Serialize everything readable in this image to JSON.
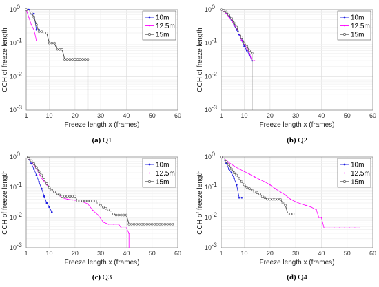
{
  "chart_data": [
    {
      "type": "line",
      "caption_letter": "(a)",
      "caption_text": "Q1",
      "xlabel": "Freeze length x (frames)",
      "ylabel": "CCH of freeze length",
      "yscale": "log",
      "xlim": [
        1,
        60
      ],
      "ylim": [
        0.001,
        1
      ],
      "xticks": [
        "1",
        "10",
        "20",
        "30",
        "40",
        "50",
        "60"
      ],
      "yticks": [
        "10^0",
        "10^-1",
        "10^-2",
        "10^-3"
      ],
      "legend_position": "top-right",
      "grid": true,
      "series": [
        {
          "name": "10m",
          "color": "#1a1ae0",
          "points": [
            [
              1,
              1
            ],
            [
              2,
              1
            ],
            [
              3,
              0.75
            ],
            [
              4,
              0.75
            ],
            [
              5,
              0.25
            ],
            [
              6,
              0.25
            ]
          ]
        },
        {
          "name": "12.5m",
          "color": "#ff00ff",
          "points": [
            [
              1,
              1
            ],
            [
              2,
              0.6
            ],
            [
              3,
              0.35
            ],
            [
              4,
              0.25
            ],
            [
              5,
              0.12
            ]
          ]
        },
        {
          "name": "15m",
          "color": "#555555",
          "points": [
            [
              1,
              1
            ],
            [
              2,
              0.9
            ],
            [
              3,
              0.8
            ],
            [
              4,
              0.6
            ],
            [
              5,
              0.35
            ],
            [
              6,
              0.22
            ],
            [
              7,
              0.22
            ],
            [
              8,
              0.2
            ],
            [
              9,
              0.2
            ],
            [
              10,
              0.1
            ],
            [
              11,
              0.1
            ],
            [
              12,
              0.1
            ],
            [
              13,
              0.065
            ],
            [
              14,
              0.065
            ],
            [
              15,
              0.065
            ],
            [
              16,
              0.033
            ],
            [
              17,
              0.033
            ],
            [
              18,
              0.033
            ],
            [
              19,
              0.033
            ],
            [
              20,
              0.033
            ],
            [
              21,
              0.033
            ],
            [
              22,
              0.033
            ],
            [
              23,
              0.033
            ],
            [
              24,
              0.033
            ],
            [
              25,
              0.033
            ],
            [
              25,
              0.001
            ]
          ]
        }
      ]
    },
    {
      "type": "line",
      "caption_letter": "(b)",
      "caption_text": "Q2",
      "xlabel": "Freeze length x (frames)",
      "ylabel": "CCH of freeze length",
      "yscale": "log",
      "xlim": [
        1,
        60
      ],
      "ylim": [
        0.001,
        1
      ],
      "xticks": [
        "1",
        "10",
        "20",
        "30",
        "40",
        "50",
        "60"
      ],
      "yticks": [
        "10^0",
        "10^-1",
        "10^-2",
        "10^-3"
      ],
      "legend_position": "top-right",
      "grid": true,
      "series": [
        {
          "name": "10m",
          "color": "#1a1ae0",
          "points": [
            [
              1,
              1
            ],
            [
              2,
              0.95
            ],
            [
              3,
              0.8
            ],
            [
              4,
              0.65
            ],
            [
              5,
              0.5
            ],
            [
              6,
              0.35
            ],
            [
              7,
              0.25
            ],
            [
              8,
              0.18
            ],
            [
              9,
              0.12
            ],
            [
              10,
              0.08
            ],
            [
              11,
              0.06
            ],
            [
              12,
              0.045
            ],
            [
              13,
              0.03
            ]
          ]
        },
        {
          "name": "12.5m",
          "color": "#ff00ff",
          "points": [
            [
              1,
              1
            ],
            [
              2,
              0.9
            ],
            [
              3,
              0.75
            ],
            [
              4,
              0.6
            ],
            [
              5,
              0.5
            ],
            [
              6,
              0.35
            ],
            [
              7,
              0.28
            ],
            [
              8,
              0.2
            ],
            [
              9,
              0.12
            ],
            [
              10,
              0.09
            ],
            [
              11,
              0.07
            ],
            [
              12,
              0.05
            ],
            [
              13,
              0.03
            ],
            [
              14,
              0.03
            ]
          ]
        },
        {
          "name": "15m",
          "color": "#555555",
          "points": [
            [
              1,
              1
            ],
            [
              2,
              0.95
            ],
            [
              3,
              0.85
            ],
            [
              4,
              0.7
            ],
            [
              5,
              0.55
            ],
            [
              6,
              0.4
            ],
            [
              7,
              0.3
            ],
            [
              8,
              0.2
            ],
            [
              9,
              0.15
            ],
            [
              10,
              0.1
            ],
            [
              11,
              0.08
            ],
            [
              12,
              0.06
            ],
            [
              13,
              0.05
            ],
            [
              13,
              0.001
            ]
          ]
        }
      ]
    },
    {
      "type": "line",
      "caption_letter": "(c)",
      "caption_text": "Q3",
      "xlabel": "Freeze length x (frames)",
      "ylabel": "CCH of freeze length",
      "yscale": "log",
      "xlim": [
        1,
        60
      ],
      "ylim": [
        0.001,
        1
      ],
      "xticks": [
        "1",
        "10",
        "20",
        "30",
        "40",
        "50",
        "60"
      ],
      "yticks": [
        "10^0",
        "10^-1",
        "10^-2",
        "10^-3"
      ],
      "legend_position": "top-right",
      "grid": true,
      "series": [
        {
          "name": "10m",
          "color": "#1a1ae0",
          "points": [
            [
              1,
              1
            ],
            [
              2,
              0.85
            ],
            [
              3,
              0.6
            ],
            [
              4,
              0.4
            ],
            [
              5,
              0.25
            ],
            [
              6,
              0.15
            ],
            [
              7,
              0.09
            ],
            [
              8,
              0.05
            ],
            [
              9,
              0.03
            ],
            [
              10,
              0.022
            ],
            [
              11,
              0.015
            ]
          ]
        },
        {
          "name": "12.5m",
          "color": "#ff00ff",
          "points": [
            [
              1,
              1
            ],
            [
              3,
              0.7
            ],
            [
              5,
              0.4
            ],
            [
              7,
              0.2
            ],
            [
              9,
              0.12
            ],
            [
              11,
              0.08
            ],
            [
              13,
              0.06
            ],
            [
              15,
              0.045
            ],
            [
              17,
              0.04
            ],
            [
              19,
              0.038
            ],
            [
              21,
              0.036
            ],
            [
              23,
              0.033
            ],
            [
              25,
              0.028
            ],
            [
              27,
              0.017
            ],
            [
              29,
              0.012
            ],
            [
              31,
              0.007
            ],
            [
              33,
              0.006
            ],
            [
              35,
              0.006
            ],
            [
              37,
              0.006
            ],
            [
              38,
              0.0045
            ],
            [
              40,
              0.0045
            ],
            [
              41,
              0.003
            ],
            [
              41,
              0.001
            ]
          ]
        },
        {
          "name": "15m",
          "color": "#555555",
          "points": [
            [
              1,
              1
            ],
            [
              2,
              0.9
            ],
            [
              3,
              0.75
            ],
            [
              4,
              0.6
            ],
            [
              5,
              0.45
            ],
            [
              6,
              0.33
            ],
            [
              7,
              0.25
            ],
            [
              8,
              0.18
            ],
            [
              9,
              0.13
            ],
            [
              10,
              0.1
            ],
            [
              11,
              0.08
            ],
            [
              12,
              0.07
            ],
            [
              13,
              0.06
            ],
            [
              14,
              0.055
            ],
            [
              15,
              0.05
            ],
            [
              16,
              0.05
            ],
            [
              17,
              0.05
            ],
            [
              18,
              0.05
            ],
            [
              19,
              0.05
            ],
            [
              20,
              0.05
            ],
            [
              21,
              0.035
            ],
            [
              22,
              0.035
            ],
            [
              23,
              0.035
            ],
            [
              24,
              0.035
            ],
            [
              25,
              0.035
            ],
            [
              26,
              0.035
            ],
            [
              27,
              0.035
            ],
            [
              28,
              0.035
            ],
            [
              29,
              0.03
            ],
            [
              30,
              0.025
            ],
            [
              31,
              0.022
            ],
            [
              32,
              0.02
            ],
            [
              33,
              0.018
            ],
            [
              34,
              0.015
            ],
            [
              35,
              0.013
            ],
            [
              36,
              0.012
            ],
            [
              37,
              0.012
            ],
            [
              38,
              0.012
            ],
            [
              39,
              0.012
            ],
            [
              40,
              0.012
            ],
            [
              41,
              0.006
            ],
            [
              42,
              0.006
            ],
            [
              43,
              0.006
            ],
            [
              44,
              0.006
            ],
            [
              45,
              0.006
            ],
            [
              46,
              0.006
            ],
            [
              47,
              0.006
            ],
            [
              48,
              0.006
            ],
            [
              49,
              0.006
            ],
            [
              50,
              0.006
            ],
            [
              51,
              0.006
            ],
            [
              52,
              0.006
            ],
            [
              53,
              0.006
            ],
            [
              54,
              0.006
            ],
            [
              55,
              0.006
            ],
            [
              56,
              0.006
            ],
            [
              57,
              0.006
            ],
            [
              58,
              0.006
            ]
          ]
        }
      ]
    },
    {
      "type": "line",
      "caption_letter": "(d)",
      "caption_text": "Q4",
      "xlabel": "Freeze length x (frames)",
      "ylabel": "CCH of freeze length",
      "yscale": "log",
      "xlim": [
        1,
        60
      ],
      "ylim": [
        0.001,
        1
      ],
      "xticks": [
        "1",
        "10",
        "20",
        "30",
        "40",
        "50",
        "60"
      ],
      "yticks": [
        "10^0",
        "10^-1",
        "10^-2",
        "10^-3"
      ],
      "legend_position": "top-right",
      "grid": true,
      "series": [
        {
          "name": "10m",
          "color": "#1a1ae0",
          "points": [
            [
              1,
              1
            ],
            [
              2,
              0.85
            ],
            [
              3,
              0.6
            ],
            [
              4,
              0.4
            ],
            [
              5,
              0.3
            ],
            [
              6,
              0.2
            ],
            [
              7,
              0.12
            ],
            [
              8,
              0.045
            ],
            [
              9,
              0.045
            ]
          ]
        },
        {
          "name": "12.5m",
          "color": "#ff00ff",
          "points": [
            [
              1,
              1
            ],
            [
              2,
              0.9
            ],
            [
              3,
              0.78
            ],
            [
              4,
              0.65
            ],
            [
              6,
              0.5
            ],
            [
              8,
              0.4
            ],
            [
              10,
              0.33
            ],
            [
              12,
              0.27
            ],
            [
              14,
              0.22
            ],
            [
              16,
              0.18
            ],
            [
              18,
              0.15
            ],
            [
              20,
              0.12
            ],
            [
              22,
              0.09
            ],
            [
              24,
              0.07
            ],
            [
              26,
              0.055
            ],
            [
              28,
              0.04
            ],
            [
              30,
              0.033
            ],
            [
              32,
              0.028
            ],
            [
              34,
              0.025
            ],
            [
              36,
              0.022
            ],
            [
              38,
              0.018
            ],
            [
              39,
              0.01
            ],
            [
              40,
              0.01
            ],
            [
              41,
              0.0045
            ],
            [
              43,
              0.0045
            ],
            [
              45,
              0.0045
            ],
            [
              47,
              0.0045
            ],
            [
              49,
              0.0045
            ],
            [
              51,
              0.0045
            ],
            [
              53,
              0.0045
            ],
            [
              55,
              0.0045
            ],
            [
              55,
              0.001
            ]
          ]
        },
        {
          "name": "15m",
          "color": "#555555",
          "points": [
            [
              1,
              1
            ],
            [
              2,
              0.85
            ],
            [
              3,
              0.7
            ],
            [
              4,
              0.55
            ],
            [
              5,
              0.4
            ],
            [
              6,
              0.3
            ],
            [
              7,
              0.25
            ],
            [
              8,
              0.2
            ],
            [
              9,
              0.15
            ],
            [
              10,
              0.12
            ],
            [
              11,
              0.1
            ],
            [
              12,
              0.09
            ],
            [
              13,
              0.08
            ],
            [
              14,
              0.07
            ],
            [
              15,
              0.065
            ],
            [
              16,
              0.06
            ],
            [
              17,
              0.05
            ],
            [
              18,
              0.045
            ],
            [
              19,
              0.04
            ],
            [
              20,
              0.04
            ],
            [
              21,
              0.04
            ],
            [
              22,
              0.04
            ],
            [
              23,
              0.04
            ],
            [
              24,
              0.04
            ],
            [
              25,
              0.03
            ],
            [
              26,
              0.025
            ],
            [
              27,
              0.013
            ],
            [
              28,
              0.013
            ],
            [
              29,
              0.013
            ]
          ]
        }
      ]
    }
  ]
}
